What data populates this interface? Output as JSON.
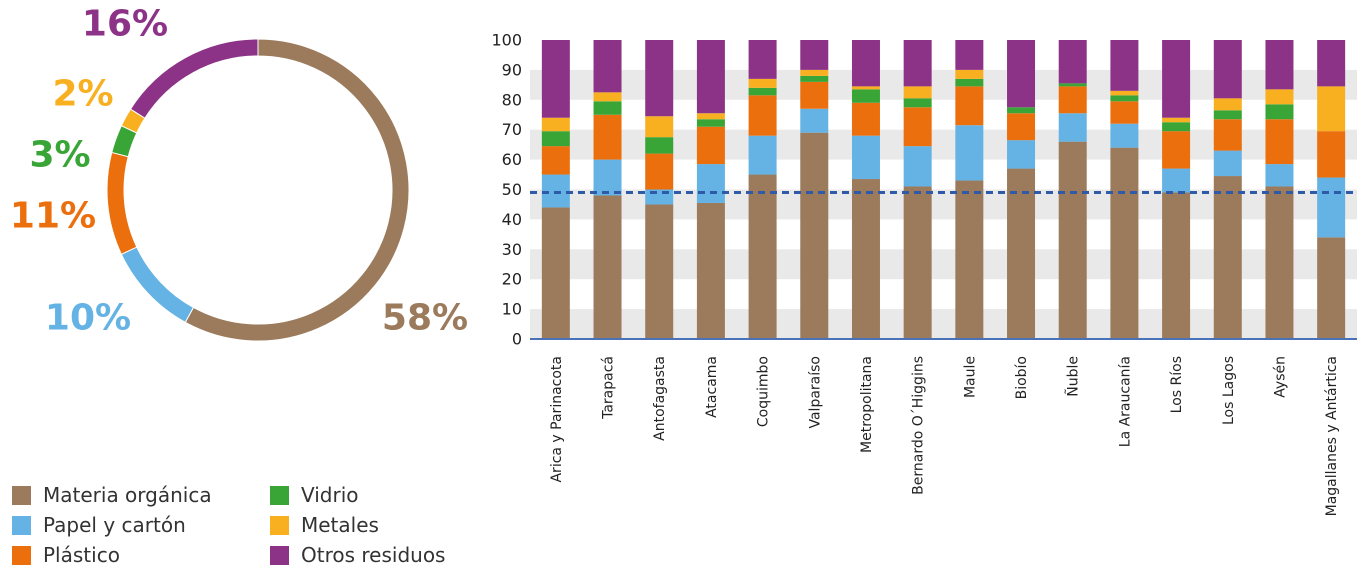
{
  "legend": {
    "items": [
      {
        "label": "Materia orgánica",
        "color": "#9b7b5c"
      },
      {
        "label": "Papel y cartón",
        "color": "#64b3e4"
      },
      {
        "label": "Plástico",
        "color": "#ec6f0e"
      },
      {
        "label": "Vidrio",
        "color": "#3aa537"
      },
      {
        "label": "Metales",
        "color": "#f9b020"
      },
      {
        "label": "Otros residuos",
        "color": "#8d3387"
      }
    ]
  },
  "chart_data": [
    {
      "type": "pie",
      "style": "donut",
      "labels": [
        "Materia orgánica",
        "Papel y cartón",
        "Plástico",
        "Vidrio",
        "Metales",
        "Otros residuos"
      ],
      "values": [
        58,
        10,
        11,
        3,
        2,
        16
      ],
      "value_labels": [
        "58%",
        "10%",
        "11%",
        "3%",
        "2%",
        "16%"
      ],
      "colors": [
        "#9b7b5c",
        "#64b3e4",
        "#ec6f0e",
        "#3aa537",
        "#f9b020",
        "#8d3387"
      ]
    },
    {
      "type": "bar",
      "stacked": true,
      "categories": [
        "Arica y Parinacota",
        "Tarapacá",
        "Antofagasta",
        "Atacama",
        "Coquimbo",
        "Valparaíso",
        "Metropolitana",
        "Bernardo O´Higgins",
        "Maule",
        "Biobío",
        "Ñuble",
        "La Araucanía",
        "Los Ríos",
        "Los Lagos",
        "Aysén",
        "Magallanes y Antártica"
      ],
      "series": [
        {
          "name": "Materia orgánica",
          "color": "#9b7b5c",
          "values": [
            44,
            48,
            45,
            45.5,
            55,
            69,
            53.5,
            51,
            53,
            57,
            66,
            64,
            49,
            54.5,
            51,
            34
          ]
        },
        {
          "name": "Papel y cartón",
          "color": "#64b3e4",
          "values": [
            11,
            12,
            5,
            13,
            13,
            8,
            14.5,
            13.5,
            18.5,
            9.5,
            9.5,
            8,
            8,
            8.5,
            7.5,
            20
          ]
        },
        {
          "name": "Plástico",
          "color": "#ec6f0e",
          "values": [
            9.5,
            15,
            12,
            12.5,
            13.5,
            9,
            11,
            13,
            13,
            9,
            9,
            7.5,
            12.5,
            10.5,
            15,
            15.5
          ]
        },
        {
          "name": "Vidrio",
          "color": "#3aa537",
          "values": [
            5,
            4.5,
            5.5,
            2.5,
            2.5,
            2,
            4.5,
            3,
            2.5,
            2,
            1,
            2,
            3,
            3,
            5,
            0
          ]
        },
        {
          "name": "Metales",
          "color": "#f9b020",
          "values": [
            4.5,
            3,
            7,
            2,
            3,
            2,
            1,
            4,
            3,
            0,
            0,
            1.5,
            1.5,
            4,
            5,
            15
          ]
        },
        {
          "name": "Otros residuos",
          "color": "#8d3387",
          "values": [
            26,
            17.5,
            25.5,
            24.5,
            13,
            10,
            15.5,
            15.5,
            10,
            22.5,
            14.5,
            17,
            26,
            19.5,
            16.5,
            15.5
          ]
        }
      ],
      "ylim": [
        0,
        100
      ],
      "yticks": [
        0,
        10,
        20,
        30,
        40,
        50,
        60,
        70,
        80,
        90,
        100
      ],
      "reference_line": 49,
      "grid": "horizontal bands"
    }
  ]
}
